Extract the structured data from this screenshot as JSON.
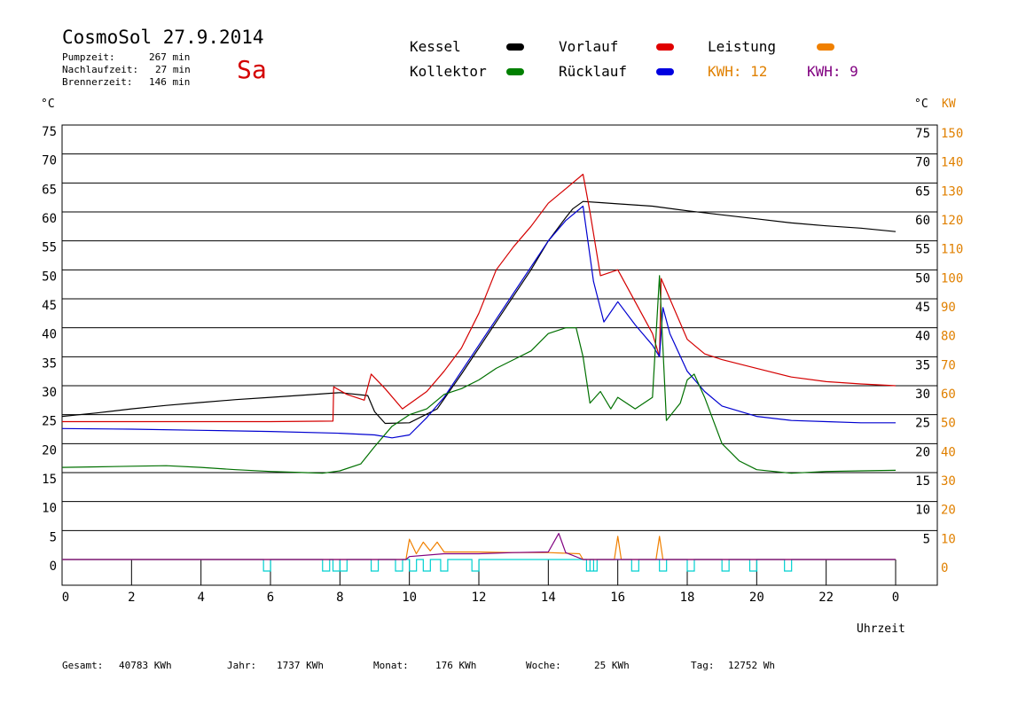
{
  "header": {
    "title": "CosmoSol 27.9.2014",
    "day": "Sa",
    "pumpzeit_label": "Pumpzeit:",
    "pumpzeit_value": "267 min",
    "nachlaufzeit_label": "Nachlaufzeit:",
    "nachlaufzeit_value": "27 min",
    "brennerzeit_label": "Brennerzeit:",
    "brennerzeit_value": "146 min"
  },
  "legend": {
    "items": [
      {
        "label": "Kessel",
        "color": "#000000"
      },
      {
        "label": "Vorlauf",
        "color": "#e00000"
      },
      {
        "label": "Leistung",
        "color": "#f08000"
      },
      {
        "label": "Kollektor",
        "color": "#008000"
      },
      {
        "label": "Rücklauf",
        "color": "#0000e0"
      }
    ],
    "kwh1": "KWH: 12",
    "kwh2": "KWH: 9",
    "kwh1_color": "#e08000",
    "kwh2_color": "#800080"
  },
  "footer": {
    "gesamt_label": "Gesamt:",
    "gesamt_value": "40783 KWh",
    "jahr_label": "Jahr:",
    "jahr_value": "1737 KWh",
    "monat_label": "Monat:",
    "monat_value": "176 KWh",
    "woche_label": "Woche:",
    "woche_value": "25 KWh",
    "tag_label": "Tag:",
    "tag_value": "12752 Wh"
  },
  "chart_data": {
    "type": "line",
    "xlabel": "Uhrzeit",
    "ylabel_left": "°C",
    "ylabel_right_c": "°C",
    "ylabel_right_kw": "KW",
    "xlim": [
      0,
      24
    ],
    "ylim": [
      0,
      75
    ],
    "y2lim": [
      0,
      150
    ],
    "x_ticks": [
      "0",
      "2",
      "4",
      "6",
      "8",
      "10",
      "12",
      "14",
      "16",
      "18",
      "20",
      "22",
      "0"
    ],
    "y_ticks": [
      "0",
      "5",
      "10",
      "15",
      "20",
      "25",
      "30",
      "35",
      "40",
      "45",
      "50",
      "55",
      "60",
      "65",
      "70",
      "75"
    ],
    "y_right_ticks": [
      "",
      "5",
      "10",
      "15",
      "20",
      "25",
      "30",
      "35",
      "40",
      "45",
      "50",
      "55",
      "60",
      "65",
      "70",
      "75"
    ],
    "y2_ticks": [
      "0",
      "10",
      "20",
      "30",
      "40",
      "50",
      "60",
      "70",
      "80",
      "90",
      "100",
      "110",
      "120",
      "130",
      "140",
      "150"
    ],
    "grid": true,
    "series": [
      {
        "name": "Kessel",
        "color": "#000000",
        "points": [
          [
            0,
            24.7
          ],
          [
            1,
            25.3
          ],
          [
            2,
            26.0
          ],
          [
            3,
            26.6
          ],
          [
            4,
            27.1
          ],
          [
            5,
            27.6
          ],
          [
            6,
            28.0
          ],
          [
            7,
            28.4
          ],
          [
            8,
            28.8
          ],
          [
            8.8,
            28.3
          ],
          [
            9.0,
            25.5
          ],
          [
            9.3,
            23.5
          ],
          [
            10,
            23.6
          ],
          [
            10.8,
            26.0
          ],
          [
            11.5,
            32.0
          ],
          [
            12,
            36.5
          ],
          [
            12.5,
            41.0
          ],
          [
            13,
            45.5
          ],
          [
            13.5,
            50.0
          ],
          [
            14,
            55.0
          ],
          [
            14.5,
            59.0
          ],
          [
            14.7,
            60.5
          ],
          [
            15,
            61.8
          ],
          [
            15.5,
            61.6
          ],
          [
            16,
            61.4
          ],
          [
            17,
            61.0
          ],
          [
            18,
            60.2
          ],
          [
            19,
            59.5
          ],
          [
            20,
            58.8
          ],
          [
            21,
            58.1
          ],
          [
            22,
            57.6
          ],
          [
            23,
            57.2
          ],
          [
            24,
            56.6
          ]
        ]
      },
      {
        "name": "Vorlauf",
        "color": "#d40000",
        "points": [
          [
            0,
            23.8
          ],
          [
            2,
            23.8
          ],
          [
            4,
            23.8
          ],
          [
            6,
            23.8
          ],
          [
            7.8,
            23.9
          ],
          [
            7.82,
            29.8
          ],
          [
            8.2,
            28.5
          ],
          [
            8.7,
            27.5
          ],
          [
            8.9,
            32.0
          ],
          [
            9.3,
            29.5
          ],
          [
            9.8,
            26.0
          ],
          [
            10.5,
            29.0
          ],
          [
            11,
            32.5
          ],
          [
            11.5,
            36.5
          ],
          [
            12,
            42.5
          ],
          [
            12.5,
            50.0
          ],
          [
            13,
            54.0
          ],
          [
            13.5,
            57.5
          ],
          [
            14,
            61.5
          ],
          [
            14.5,
            64.0
          ],
          [
            15,
            66.5
          ],
          [
            15.2,
            60.0
          ],
          [
            15.5,
            49.0
          ],
          [
            16,
            50.0
          ],
          [
            16.5,
            44.5
          ],
          [
            17,
            39.0
          ],
          [
            17.2,
            35.0
          ],
          [
            17.25,
            48.5
          ],
          [
            17.5,
            45.0
          ],
          [
            18,
            38.0
          ],
          [
            18.5,
            35.5
          ],
          [
            19,
            34.5
          ],
          [
            20,
            33.0
          ],
          [
            21,
            31.5
          ],
          [
            22,
            30.7
          ],
          [
            23,
            30.3
          ],
          [
            24,
            30.0
          ]
        ]
      },
      {
        "name": "Rücklauf",
        "color": "#0000d0",
        "points": [
          [
            0,
            22.6
          ],
          [
            2,
            22.5
          ],
          [
            4,
            22.3
          ],
          [
            6,
            22.1
          ],
          [
            8,
            21.8
          ],
          [
            9,
            21.5
          ],
          [
            9.5,
            21.0
          ],
          [
            10,
            21.5
          ],
          [
            10.5,
            24.5
          ],
          [
            11,
            28.0
          ],
          [
            11.5,
            32.5
          ],
          [
            12,
            37.0
          ],
          [
            12.5,
            41.5
          ],
          [
            13,
            46.0
          ],
          [
            13.5,
            50.5
          ],
          [
            14,
            55.0
          ],
          [
            14.5,
            58.5
          ],
          [
            15,
            61.0
          ],
          [
            15.3,
            48.0
          ],
          [
            15.6,
            41.0
          ],
          [
            16,
            44.5
          ],
          [
            16.5,
            40.5
          ],
          [
            17,
            37.0
          ],
          [
            17.2,
            35.0
          ],
          [
            17.3,
            43.5
          ],
          [
            17.5,
            39.0
          ],
          [
            18,
            32.5
          ],
          [
            18.5,
            29.0
          ],
          [
            19,
            26.5
          ],
          [
            20,
            24.7
          ],
          [
            21,
            24.0
          ],
          [
            22,
            23.8
          ],
          [
            23,
            23.6
          ],
          [
            24,
            23.6
          ]
        ]
      },
      {
        "name": "Kollektor",
        "color": "#007000",
        "points": [
          [
            0,
            15.9
          ],
          [
            1,
            16.0
          ],
          [
            2,
            16.1
          ],
          [
            3,
            16.2
          ],
          [
            4,
            15.9
          ],
          [
            5,
            15.5
          ],
          [
            6,
            15.2
          ],
          [
            7,
            15.0
          ],
          [
            7.5,
            14.9
          ],
          [
            8,
            15.3
          ],
          [
            8.6,
            16.5
          ],
          [
            9.0,
            19.5
          ],
          [
            9.5,
            23.0
          ],
          [
            10,
            25.0
          ],
          [
            10.5,
            26.0
          ],
          [
            11,
            28.5
          ],
          [
            11.5,
            29.5
          ],
          [
            12,
            31.0
          ],
          [
            12.5,
            33.0
          ],
          [
            13,
            34.5
          ],
          [
            13.5,
            36.0
          ],
          [
            14,
            39.0
          ],
          [
            14.5,
            40.0
          ],
          [
            14.8,
            40.0
          ],
          [
            15,
            35.0
          ],
          [
            15.2,
            27.0
          ],
          [
            15.5,
            29.0
          ],
          [
            15.8,
            26.0
          ],
          [
            16,
            28.0
          ],
          [
            16.5,
            26.0
          ],
          [
            17,
            28.0
          ],
          [
            17.2,
            49.0
          ],
          [
            17.4,
            24.0
          ],
          [
            17.8,
            27.0
          ],
          [
            18,
            31.0
          ],
          [
            18.2,
            32.0
          ],
          [
            18.5,
            28.0
          ],
          [
            19,
            20.0
          ],
          [
            19.5,
            17.0
          ],
          [
            20,
            15.5
          ],
          [
            21,
            14.9
          ],
          [
            22,
            15.2
          ],
          [
            23,
            15.3
          ],
          [
            24,
            15.4
          ]
        ]
      },
      {
        "name": "Leistung",
        "color": "#f08000",
        "points": [
          [
            0,
            0
          ],
          [
            9.9,
            0
          ],
          [
            10,
            3.5
          ],
          [
            10.2,
            1.0
          ],
          [
            10.4,
            3.0
          ],
          [
            10.6,
            1.5
          ],
          [
            10.8,
            3.0
          ],
          [
            11,
            1.3
          ],
          [
            12,
            1.3
          ],
          [
            13,
            1.2
          ],
          [
            14,
            1.2
          ],
          [
            14.9,
            1.0
          ],
          [
            15,
            0
          ],
          [
            15.9,
            0
          ],
          [
            16,
            4.0
          ],
          [
            16.1,
            0
          ],
          [
            17.1,
            0
          ],
          [
            17.2,
            4.0
          ],
          [
            17.3,
            0
          ],
          [
            24,
            0
          ]
        ]
      },
      {
        "name": "",
        "color": "#800080",
        "points": [
          [
            0,
            0
          ],
          [
            9.9,
            0
          ],
          [
            10,
            0.5
          ],
          [
            11,
            1.0
          ],
          [
            12,
            1.0
          ],
          [
            13,
            1.2
          ],
          [
            14,
            1.3
          ],
          [
            14.3,
            4.5
          ],
          [
            14.5,
            1.2
          ],
          [
            15,
            0
          ],
          [
            24,
            0
          ]
        ]
      }
    ],
    "pump_pulses_x": [
      5.8,
      7.5,
      7.8,
      8.0,
      8.9,
      9.6,
      10.0,
      10.4,
      10.9,
      11.8,
      15.1,
      15.2,
      16.4,
      17.2,
      18.0,
      19.0,
      19.8,
      20.8
    ]
  }
}
